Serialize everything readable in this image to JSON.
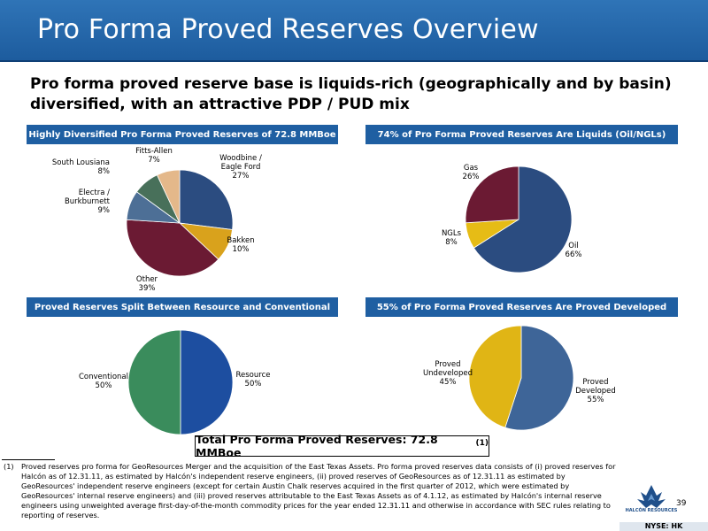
{
  "header": {
    "title": "Pro Forma Proved Reserves Overview"
  },
  "headline": "Pro forma proved reserve base is liquids-rich (geographically and by basin) diversified, with an attractive PDP / PUD mix",
  "panels": {
    "basin": {
      "title": "Highly Diversified Pro Forma Proved Reserves of 72.8 MMBoe"
    },
    "liquids": {
      "title": "74% of Pro Forma Proved Reserves Are Liquids (Oil/NGLs)"
    },
    "resource": {
      "title": "Proved Reserves Split Between Resource and Conventional"
    },
    "developed": {
      "title": "55% of Pro Forma Proved Reserves Are Proved Developed"
    }
  },
  "chart_data": [
    {
      "type": "pie",
      "title": "Highly Diversified Pro Forma Proved Reserves of 72.8 MMBoe",
      "slices": [
        {
          "label": "Woodbine /\nEagle Ford",
          "value": 27,
          "pct_label": "27%",
          "color": "#2b4c80"
        },
        {
          "label": "Bakken",
          "value": 10,
          "pct_label": "10%",
          "color": "#d9a21c"
        },
        {
          "label": "Other",
          "value": 39,
          "pct_label": "39%",
          "color": "#6b1a33"
        },
        {
          "label": "Electra /\nBurkburnett",
          "value": 9,
          "pct_label": "9%",
          "color": "#4d6f96"
        },
        {
          "label": "South Lousiana",
          "value": 8,
          "pct_label": "8%",
          "color": "#48705a"
        },
        {
          "label": "Fitts-Allen",
          "value": 7,
          "pct_label": "7%",
          "color": "#e4b88a"
        }
      ]
    },
    {
      "type": "pie",
      "title": "74% of Pro Forma Proved Reserves Are Liquids (Oil/NGLs)",
      "slices": [
        {
          "label": "Oil",
          "value": 66,
          "pct_label": "66%",
          "color": "#2b4c80"
        },
        {
          "label": "NGLs",
          "value": 8,
          "pct_label": "8%",
          "color": "#e6bc16"
        },
        {
          "label": "Gas",
          "value": 26,
          "pct_label": "26%",
          "color": "#6b1a33"
        }
      ]
    },
    {
      "type": "pie",
      "title": "Proved Reserves Split Between Resource and Conventional",
      "slices": [
        {
          "label": "Resource",
          "value": 50,
          "pct_label": "50%",
          "color": "#1d4ea0"
        },
        {
          "label": "Conventional",
          "value": 50,
          "pct_label": "50%",
          "color": "#3a8c5c"
        }
      ]
    },
    {
      "type": "pie",
      "title": "55% of Pro Forma Proved Reserves Are Proved Developed",
      "slices": [
        {
          "label": "Proved\nDeveloped",
          "value": 55,
          "pct_label": "55%",
          "color": "#3e6598"
        },
        {
          "label": "Proved\nUndeveloped",
          "value": 45,
          "pct_label": "45%",
          "color": "#e0b515"
        }
      ]
    }
  ],
  "total": {
    "text": "Total Pro Forma Proved Reserves: 72.8 MMBoe",
    "note": "(1)"
  },
  "footnote": {
    "mark": "(1)",
    "text": "Proved reserves pro forma for GeoResources Merger and the acquisition of the East Texas Assets. Pro forma proved reserves data consists of (i) proved reserves for Halcón as of 12.31.11, as estimated by Halcón's independent reserve engineers, (ii) proved reserves of GeoResources as of 12.31.11 as estimated by GeoResources' independent reserve engineers (except for certain Austin Chalk reserves acquired in the first quarter of 2012, which were estimated by GeoResources' internal reserve engineers) and (iii) proved reserves attributable to the East Texas Assets as of 4.1.12, as estimated by Halcón's internal reserve engineers using unweighted average first-day-of-the-month commodity prices for the year ended 12.31.11 and otherwise in accordance with SEC rules relating to reporting of reserves."
  },
  "logo": {
    "name": "halcon-logo",
    "wordmark": "HALCÓN RESOURCES"
  },
  "page_number": "39",
  "ticker": "NYSE: HK"
}
